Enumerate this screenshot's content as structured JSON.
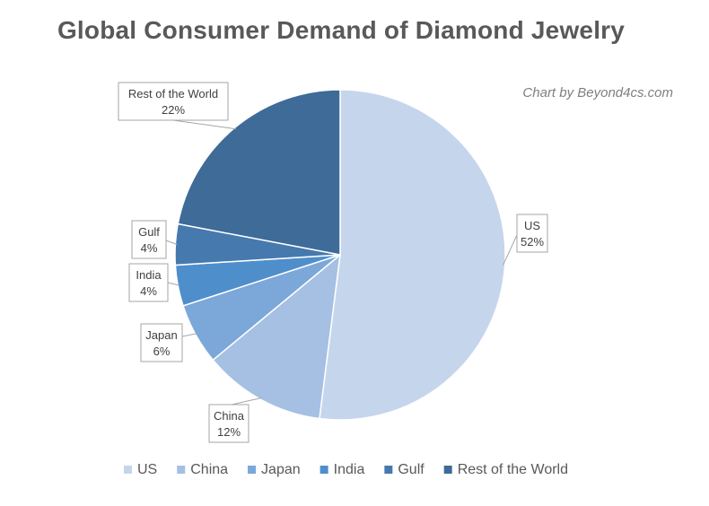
{
  "chart_data": {
    "type": "pie",
    "title": "Global Consumer Demand of Diamond Jewelry",
    "credit": "Chart by Beyond4cs.com",
    "categories": [
      "US",
      "China",
      "Japan",
      "India",
      "Gulf",
      "Rest of the World"
    ],
    "values": [
      52,
      12,
      6,
      4,
      4,
      22
    ],
    "labels": [
      "52%",
      "12%",
      "6%",
      "4%",
      "4%",
      "22%"
    ],
    "colors": [
      "#c5d5ec",
      "#a5c0e3",
      "#7ca7d9",
      "#4e8fcb",
      "#4679ae",
      "#3e6b98"
    ],
    "start_angle_deg": 0,
    "direction": "clockwise",
    "legend_position": "bottom",
    "data_labels": "category-and-percent-in-callouts"
  }
}
